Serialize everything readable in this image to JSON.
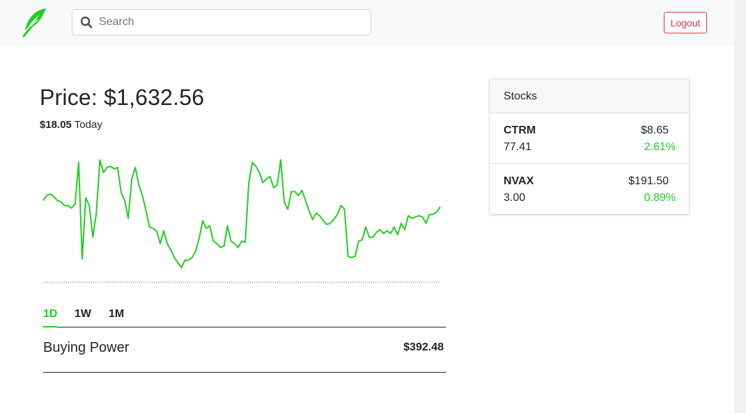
{
  "colors": {
    "accent_green": "#21ce21",
    "logout_red": "#dc3545",
    "navbar_bg": "#f8f9fa"
  },
  "navbar": {
    "logo_icon": "feather-icon",
    "search_placeholder": "Search",
    "search_value": "",
    "search_icon": "search-icon",
    "logout_label": "Logout"
  },
  "main": {
    "price_label": "Price: $1,632.56",
    "change_value": "$18.05",
    "change_period": "Today",
    "tabs": [
      {
        "label": "1D",
        "active": true
      },
      {
        "label": "1W",
        "active": false
      },
      {
        "label": "1M",
        "active": false
      }
    ],
    "buying_power_label": "Buying Power",
    "buying_power_value": "$392.48"
  },
  "chart_data": {
    "type": "line",
    "title": "",
    "xlabel": "",
    "ylabel": "",
    "grid": false,
    "baseline_dotted": true,
    "series": [
      {
        "color": "#21ce21",
        "values": [
          66,
          70,
          71,
          69,
          66,
          65,
          62,
          62,
          60,
          63,
          96,
          20,
          68,
          62,
          37,
          56,
          98,
          88,
          92,
          93,
          91,
          92,
          72,
          66,
          52,
          83,
          92,
          78,
          70,
          58,
          45,
          44,
          42,
          32,
          42,
          32,
          27,
          21,
          17,
          13,
          19,
          19,
          21,
          26,
          36,
          50,
          44,
          46,
          34,
          32,
          29,
          30,
          46,
          34,
          32,
          29,
          34,
          33,
          80,
          96,
          93,
          88,
          80,
          83,
          85,
          76,
          78,
          98,
          65,
          59,
          73,
          73,
          70,
          74,
          66,
          58,
          51,
          56,
          54,
          50,
          47,
          48,
          51,
          55,
          62,
          59,
          22,
          21,
          22,
          34,
          35,
          45,
          37,
          37,
          41,
          43,
          40,
          42,
          40,
          45,
          39,
          48,
          43,
          54,
          52,
          53,
          54,
          53,
          48,
          55,
          55,
          57,
          61
        ]
      }
    ]
  },
  "stocks": {
    "header": "Stocks",
    "items": [
      {
        "symbol": "CTRM",
        "price": "$8.65",
        "shares": "77.41",
        "change_pct": "2.61%"
      },
      {
        "symbol": "NVAX",
        "price": "$191.50",
        "shares": "3.00",
        "change_pct": "0.89%"
      }
    ]
  }
}
